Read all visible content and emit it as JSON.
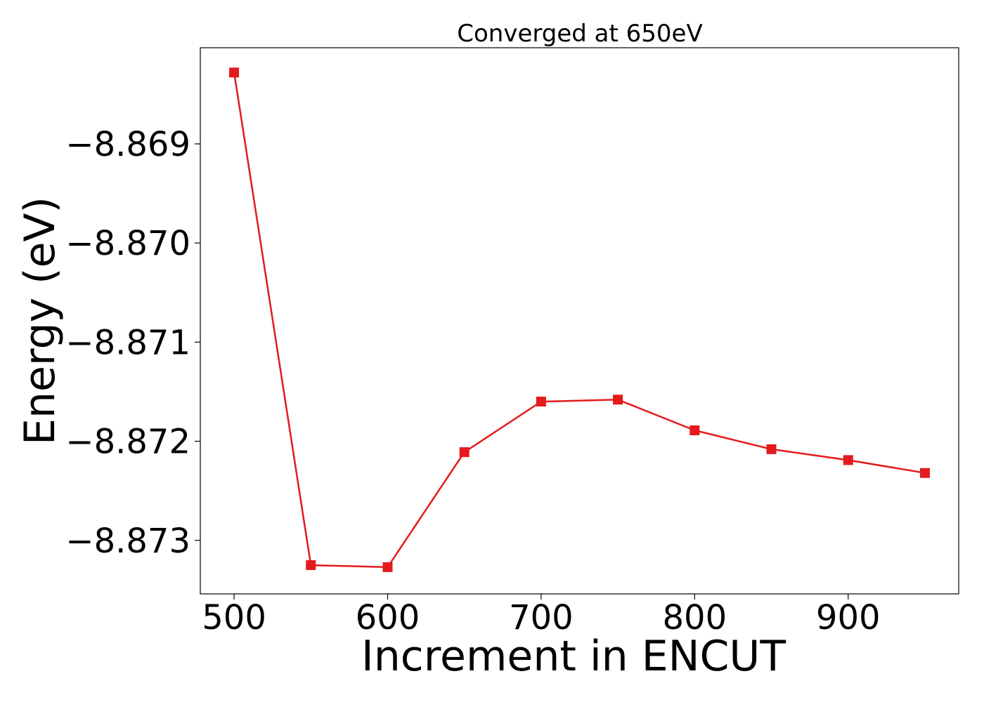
{
  "chart_data": {
    "type": "line",
    "title": "Converged at 650eV",
    "xlabel": "Increment in ENCUT",
    "ylabel": "Energy (eV)",
    "x_ticks": [
      500,
      600,
      700,
      800,
      900
    ],
    "x_tick_labels": [
      "500",
      "600",
      "700",
      "800",
      "900"
    ],
    "y_ticks": [
      -8.869,
      -8.87,
      -8.871,
      -8.872,
      -8.873
    ],
    "y_tick_labels": [
      "−8.869",
      "−8.870",
      "−8.871",
      "−8.872",
      "−8.873"
    ],
    "xlim": [
      478,
      972
    ],
    "ylim": [
      -8.87354,
      -8.86803
    ],
    "grid": false,
    "series": [
      {
        "color": "#e41a1c",
        "marker": "square",
        "x": [
          500,
          550,
          600,
          650,
          700,
          750,
          800,
          850,
          900,
          950
        ],
        "y": [
          -8.86828,
          -8.87325,
          -8.87327,
          -8.87211,
          -8.8716,
          -8.87158,
          -8.87189,
          -8.87208,
          -8.87219,
          -8.87232
        ]
      }
    ]
  }
}
